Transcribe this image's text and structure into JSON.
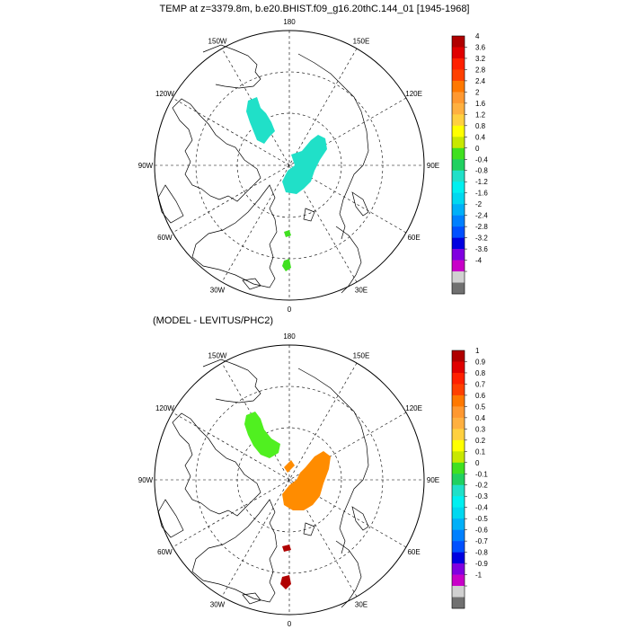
{
  "panels": [
    {
      "id": "top",
      "title": "TEMP at z=3379.8m, b.e20.BHIST.f09_g16.20thC.144_01 [1945-1968]",
      "lon_labels": [
        {
          "text": "180",
          "lon": 180
        },
        {
          "text": "150E",
          "lon": 150
        },
        {
          "text": "120E",
          "lon": 120
        },
        {
          "text": "90E",
          "lon": 90
        },
        {
          "text": "60E",
          "lon": 60
        },
        {
          "text": "30E",
          "lon": 30
        },
        {
          "text": "0",
          "lon": 0
        },
        {
          "text": "30W",
          "lon": -30
        },
        {
          "text": "60W",
          "lon": -60
        },
        {
          "text": "90W",
          "lon": -90
        },
        {
          "text": "120W",
          "lon": -120
        },
        {
          "text": "150W",
          "lon": -150
        }
      ],
      "colorbar": {
        "labels": [
          "4",
          "3.6",
          "3.2",
          "2.8",
          "2.4",
          "2",
          "1.6",
          "1.2",
          "0.8",
          "0.4",
          "0",
          "-0.4",
          "-0.8",
          "-1.2",
          "-1.6",
          "-2",
          "-2.4",
          "-2.8",
          "-3.2",
          "-3.6",
          "-4"
        ]
      },
      "blobs": [
        {
          "name": "anomaly-region-canada-basin",
          "color": "#20e0c8"
        },
        {
          "name": "anomaly-region-eurasian-basin",
          "color": "#20e0c8"
        },
        {
          "name": "anomaly-region-fram-strait",
          "color": "#40e020"
        },
        {
          "name": "anomaly-region-nordic-seas",
          "color": "#40e020"
        }
      ]
    },
    {
      "id": "bottom",
      "title": "(MODEL - LEVITUS/PHC2)",
      "lon_labels": [
        {
          "text": "180",
          "lon": 180
        },
        {
          "text": "150E",
          "lon": 150
        },
        {
          "text": "120E",
          "lon": 120
        },
        {
          "text": "90E",
          "lon": 90
        },
        {
          "text": "60E",
          "lon": 60
        },
        {
          "text": "30E",
          "lon": 30
        },
        {
          "text": "0",
          "lon": 0
        },
        {
          "text": "30W",
          "lon": -30
        },
        {
          "text": "60W",
          "lon": -60
        },
        {
          "text": "90W",
          "lon": -90
        },
        {
          "text": "120W",
          "lon": -120
        },
        {
          "text": "150W",
          "lon": -150
        }
      ],
      "colorbar": {
        "labels": [
          "1",
          "0.9",
          "0.8",
          "0.7",
          "0.6",
          "0.5",
          "0.4",
          "0.3",
          "0.2",
          "0.1",
          "0",
          "-0.1",
          "-0.2",
          "-0.3",
          "-0.4",
          "-0.5",
          "-0.6",
          "-0.7",
          "-0.8",
          "-0.9",
          "-1"
        ]
      },
      "blobs": [
        {
          "name": "anomaly-region-canada-basin",
          "color": "#50f020"
        },
        {
          "name": "anomaly-region-eurasian-basin",
          "color": "#ff8c00"
        },
        {
          "name": "anomaly-region-fram-strait",
          "color": "#b00000"
        },
        {
          "name": "anomaly-region-nordic-seas",
          "color": "#b00000"
        }
      ]
    }
  ],
  "colorbar_colors": [
    "#b00000",
    "#e00000",
    "#ff2000",
    "#ff4000",
    "#ff7800",
    "#ff9830",
    "#ffb040",
    "#ffd040",
    "#ffff00",
    "#c8e800",
    "#40e020",
    "#20d060",
    "#20e0c8",
    "#00f0f0",
    "#00d8f0",
    "#00b0f8",
    "#0080ff",
    "#0050ff",
    "#0000e0",
    "#8000e0",
    "#c800c8",
    "#d0d0d0",
    "#707070"
  ]
}
